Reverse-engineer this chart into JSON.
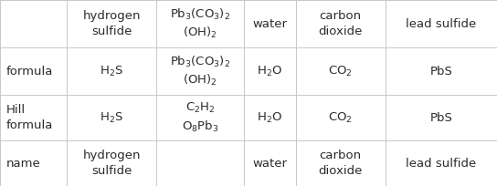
{
  "figsize": [
    5.44,
    2.04
  ],
  "dpi": 100,
  "background_color": "#ffffff",
  "border_color": "#c8c8c8",
  "font_color": "#2b2b2b",
  "font_size": 9.5,
  "cols": [
    0.0,
    0.135,
    0.315,
    0.49,
    0.595,
    0.775,
    1.0
  ],
  "rows": [
    1.0,
    0.745,
    0.49,
    0.245,
    0.0
  ],
  "cell_data": [
    [
      "",
      "hydrogen\nsulfide",
      "Pb$_3$(CO$_3$)$_2$\n(OH)$_2$",
      "water",
      "carbon\ndioxide",
      "lead sulfide"
    ],
    [
      "formula",
      "H$_2$S",
      "Pb$_3$(CO$_3$)$_2$\n(OH)$_2$",
      "H$_2$O",
      "CO$_2$",
      "PbS"
    ],
    [
      "Hill\nformula",
      "H$_2$S",
      "C$_2$H$_2$\nO$_8$Pb$_3$",
      "H$_2$O",
      "CO$_2$",
      "PbS"
    ],
    [
      "name",
      "hydrogen\nsulfide",
      "",
      "water",
      "carbon\ndioxide",
      "lead sulfide"
    ]
  ],
  "col_align": [
    "left",
    "center",
    "center",
    "center",
    "center",
    "center"
  ]
}
